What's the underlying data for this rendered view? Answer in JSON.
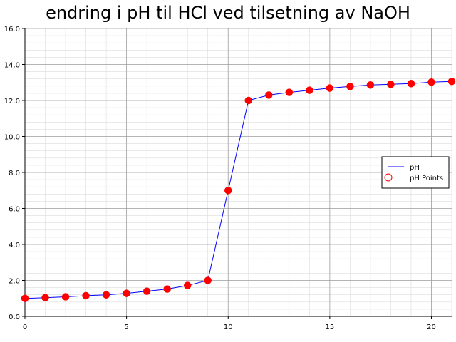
{
  "chart_data": {
    "type": "line",
    "title": "endring i pH til HCl ved tilsetning av NaOH",
    "xlabel": "",
    "ylabel": "",
    "xlim": [
      0,
      21
    ],
    "ylim": [
      0,
      16
    ],
    "x_major_ticks": [
      0,
      5,
      10,
      15,
      20
    ],
    "x_tick_labels": [
      "0",
      "5",
      "10",
      "15",
      "20"
    ],
    "y_major_ticks": [
      0,
      2,
      4,
      6,
      8,
      10,
      12,
      14,
      16
    ],
    "y_tick_labels": [
      "0.0",
      "2.0",
      "4.0",
      "6.0",
      "8.0",
      "10.0",
      "12.0",
      "14.0",
      "16.0"
    ],
    "x_minor_step": 1,
    "y_minor_step": 0.4,
    "grid": true,
    "legend_placement": "right",
    "series": [
      {
        "name": "pH",
        "kind": "line",
        "color": "#0000ff",
        "x": [
          0,
          1,
          2,
          3,
          4,
          5,
          6,
          7,
          8,
          9,
          10,
          11,
          12,
          13,
          14,
          15,
          16,
          17,
          18,
          19,
          20,
          21
        ],
        "y": [
          1.0,
          1.04,
          1.09,
          1.15,
          1.2,
          1.28,
          1.4,
          1.52,
          1.72,
          2.0,
          7.0,
          12.0,
          12.3,
          12.45,
          12.57,
          12.69,
          12.78,
          12.86,
          12.9,
          12.94,
          13.02,
          13.06
        ]
      },
      {
        "name": "pH Points",
        "kind": "scatter",
        "color": "#ff0000",
        "x": [
          0,
          1,
          2,
          3,
          4,
          5,
          6,
          7,
          8,
          9,
          10,
          11,
          12,
          13,
          14,
          15,
          16,
          17,
          18,
          19,
          20,
          21
        ],
        "y": [
          1.0,
          1.04,
          1.09,
          1.15,
          1.2,
          1.28,
          1.4,
          1.52,
          1.72,
          2.0,
          7.0,
          12.0,
          12.3,
          12.45,
          12.57,
          12.69,
          12.78,
          12.86,
          12.9,
          12.94,
          13.02,
          13.06
        ]
      }
    ],
    "colors": {
      "line": "#0000ff",
      "points": "#ff0000",
      "major_grid": "#a0a0a0",
      "minor_grid": "#dcdcdc"
    }
  }
}
